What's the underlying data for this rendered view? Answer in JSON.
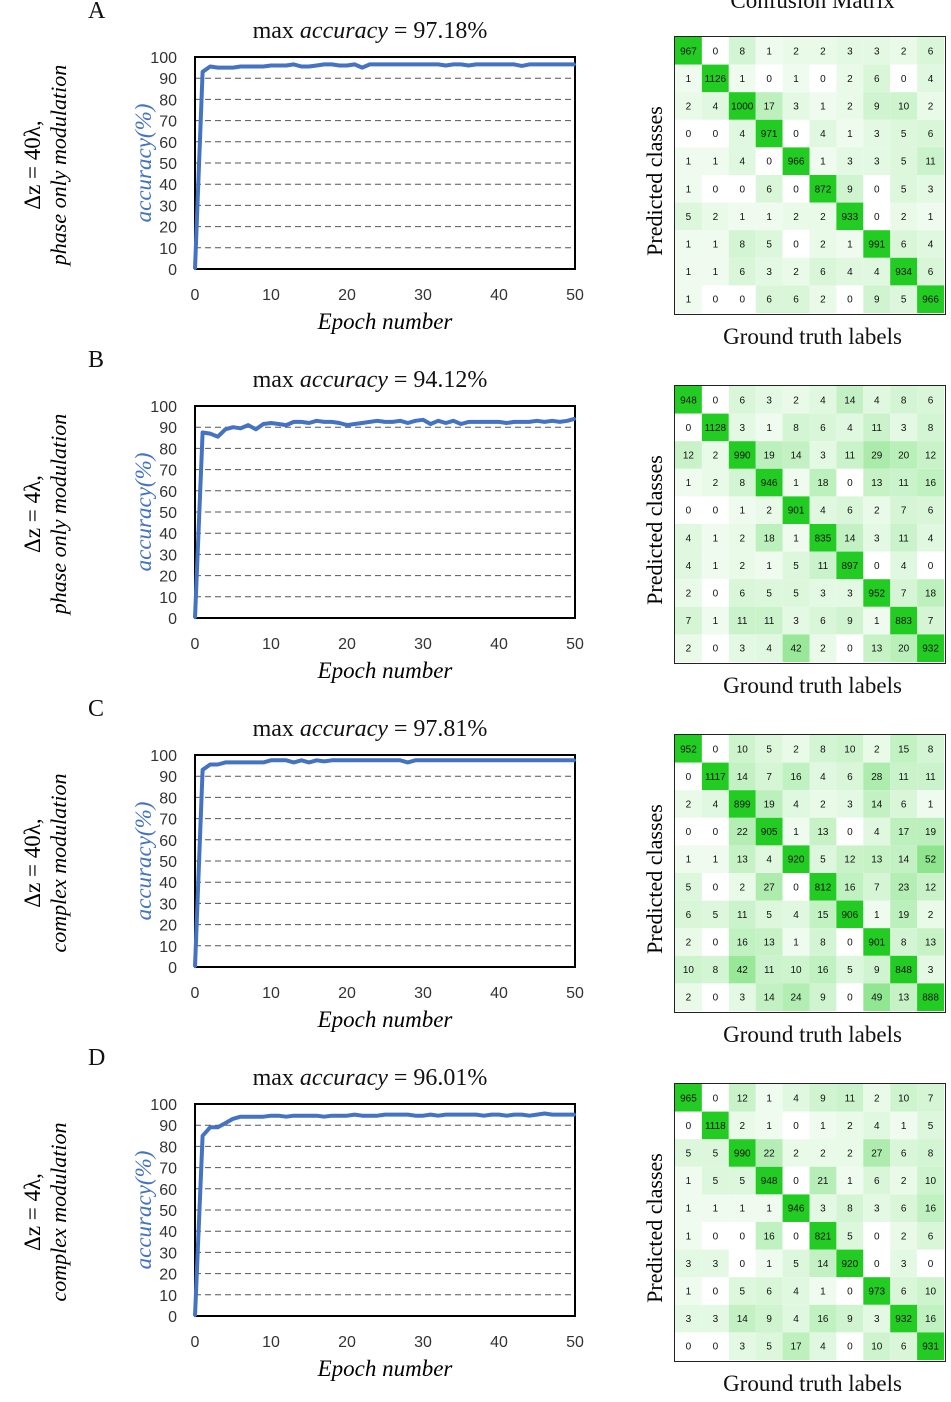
{
  "matrix_title": "Confusion Matrix",
  "matrix_xlabel": "Ground truth labels",
  "matrix_ylabel": "Predicted classes",
  "max_label": "max",
  "accuracy_word": "accuracy",
  "line_xlabel": "Epoch number",
  "line_ylabel": "accuracy(%)",
  "colors": {
    "line": "#4472C4",
    "ylabel": "#4472C4",
    "cell_max": "#22CC22",
    "cell_base": "#FFFFFF",
    "grid": "#555555"
  },
  "panels": [
    {
      "letter": "A",
      "side_line1": "Δz = 40λ,",
      "side_line2": "phase only modulation",
      "title_value": "= 97.18%"
    },
    {
      "letter": "B",
      "side_line1": "Δz = 4λ,",
      "side_line2": "phase only modulation",
      "title_value": "= 94.12%"
    },
    {
      "letter": "C",
      "side_line1": "Δz = 40λ,",
      "side_line2": "complex modulation",
      "title_value": "= 97.81%"
    },
    {
      "letter": "D",
      "side_line1": "Δz = 4λ,",
      "side_line2": "complex modulation",
      "title_value": "= 96.01%"
    }
  ],
  "chart_data": [
    {
      "type": "line",
      "title": "max accuracy = 97.18%",
      "xlabel": "Epoch number",
      "ylabel": "accuracy(%)",
      "xlim": [
        0,
        50
      ],
      "ylim": [
        0,
        100
      ],
      "xticks": [
        0,
        10,
        20,
        30,
        40,
        50
      ],
      "yticks": [
        0,
        10,
        20,
        30,
        40,
        50,
        60,
        70,
        80,
        90,
        100
      ],
      "grid": "horizontal dashed",
      "x": [
        0,
        1,
        2,
        3,
        4,
        5,
        6,
        7,
        8,
        9,
        10,
        11,
        12,
        13,
        14,
        15,
        16,
        17,
        18,
        19,
        20,
        21,
        22,
        23,
        24,
        25,
        26,
        27,
        28,
        29,
        30,
        31,
        32,
        33,
        34,
        35,
        36,
        37,
        38,
        39,
        40,
        41,
        42,
        43,
        44,
        45,
        46,
        47,
        48,
        49,
        50
      ],
      "series": [
        {
          "values": [
            0,
            93,
            95.5,
            95,
            95,
            95,
            95.5,
            95.5,
            95.5,
            95.5,
            96,
            96,
            96,
            96.5,
            95.5,
            95.5,
            96,
            96.5,
            96.5,
            96,
            96,
            96.5,
            95,
            96.5,
            96.5,
            96.5,
            96.5,
            96.5,
            96.5,
            96.5,
            96.5,
            96.5,
            96.5,
            96,
            96.5,
            96.5,
            96,
            96.5,
            96.5,
            96.5,
            96.5,
            96.5,
            96.5,
            95.8,
            96.5,
            96.5,
            96.5,
            96.5,
            96.5,
            96.5,
            96.5
          ]
        }
      ]
    },
    {
      "type": "line",
      "title": "max accuracy = 94.12%",
      "xlabel": "Epoch number",
      "ylabel": "accuracy(%)",
      "xlim": [
        0,
        50
      ],
      "ylim": [
        0,
        100
      ],
      "xticks": [
        0,
        10,
        20,
        30,
        40,
        50
      ],
      "yticks": [
        0,
        10,
        20,
        30,
        40,
        50,
        60,
        70,
        80,
        90,
        100
      ],
      "grid": "horizontal dashed",
      "x": [
        0,
        1,
        2,
        3,
        4,
        5,
        6,
        7,
        8,
        9,
        10,
        11,
        12,
        13,
        14,
        15,
        16,
        17,
        18,
        19,
        20,
        21,
        22,
        23,
        24,
        25,
        26,
        27,
        28,
        29,
        30,
        31,
        32,
        33,
        34,
        35,
        36,
        37,
        38,
        39,
        40,
        41,
        42,
        43,
        44,
        45,
        46,
        47,
        48,
        49,
        50
      ],
      "series": [
        {
          "values": [
            0,
            87.5,
            87,
            85.5,
            89,
            90,
            89.5,
            91,
            89,
            91.5,
            92,
            91.5,
            91,
            92.5,
            92.5,
            92,
            93,
            92.5,
            92.5,
            92,
            91,
            91.5,
            92,
            92.5,
            93,
            92.5,
            92.5,
            93,
            92,
            93,
            93.5,
            91.5,
            93,
            92,
            93,
            91.5,
            92.5,
            92.5,
            92.5,
            92.5,
            92.5,
            92,
            92.5,
            92.5,
            92.5,
            93,
            92.5,
            93,
            92.5,
            93,
            94
          ]
        }
      ]
    },
    {
      "type": "line",
      "title": "max accuracy = 97.81%",
      "xlabel": "Epoch number",
      "ylabel": "accuracy(%)",
      "xlim": [
        0,
        50
      ],
      "ylim": [
        0,
        100
      ],
      "xticks": [
        0,
        10,
        20,
        30,
        40,
        50
      ],
      "yticks": [
        0,
        10,
        20,
        30,
        40,
        50,
        60,
        70,
        80,
        90,
        100
      ],
      "grid": "horizontal dashed",
      "x": [
        0,
        1,
        2,
        3,
        4,
        5,
        6,
        7,
        8,
        9,
        10,
        11,
        12,
        13,
        14,
        15,
        16,
        17,
        18,
        19,
        20,
        21,
        22,
        23,
        24,
        25,
        26,
        27,
        28,
        29,
        30,
        31,
        32,
        33,
        34,
        35,
        36,
        37,
        38,
        39,
        40,
        41,
        42,
        43,
        44,
        45,
        46,
        47,
        48,
        49,
        50
      ],
      "series": [
        {
          "values": [
            0,
            93,
            95.5,
            95.5,
            96.5,
            96.5,
            96.5,
            96.5,
            96.5,
            96.5,
            97.5,
            97.5,
            97.5,
            96.5,
            97.5,
            96.5,
            97.5,
            97,
            97.5,
            97.5,
            97.5,
            97.5,
            97.5,
            97.5,
            97.5,
            97.5,
            97.5,
            97.5,
            96.5,
            97.5,
            97.5,
            97.5,
            97.5,
            97.5,
            97.5,
            97.5,
            97.5,
            97.5,
            97.5,
            97.5,
            97.5,
            97.5,
            97.5,
            97.5,
            97.5,
            97.5,
            97.5,
            97.5,
            97.5,
            97.5,
            97.5
          ]
        }
      ]
    },
    {
      "type": "line",
      "title": "max accuracy = 96.01%",
      "xlabel": "Epoch number",
      "ylabel": "accuracy(%)",
      "xlim": [
        0,
        50
      ],
      "ylim": [
        0,
        100
      ],
      "xticks": [
        0,
        10,
        20,
        30,
        40,
        50
      ],
      "yticks": [
        0,
        10,
        20,
        30,
        40,
        50,
        60,
        70,
        80,
        90,
        100
      ],
      "grid": "horizontal dashed",
      "x": [
        0,
        1,
        2,
        3,
        4,
        5,
        6,
        7,
        8,
        9,
        10,
        11,
        12,
        13,
        14,
        15,
        16,
        17,
        18,
        19,
        20,
        21,
        22,
        23,
        24,
        25,
        26,
        27,
        28,
        29,
        30,
        31,
        32,
        33,
        34,
        35,
        36,
        37,
        38,
        39,
        40,
        41,
        42,
        43,
        44,
        45,
        46,
        47,
        48,
        49,
        50
      ],
      "series": [
        {
          "values": [
            0,
            85,
            89,
            89,
            91,
            93,
            94,
            94,
            94,
            94,
            94.5,
            94.5,
            94,
            94.5,
            94.5,
            94.5,
            94.5,
            94,
            94.5,
            94.5,
            94.5,
            95,
            94.5,
            94.5,
            94.5,
            95,
            95,
            95,
            95,
            94.5,
            94.5,
            95,
            94.5,
            95,
            95,
            95,
            95,
            95,
            94.5,
            95,
            95,
            94.5,
            95,
            95,
            94.5,
            95,
            95.5,
            95,
            95,
            95,
            95
          ]
        }
      ]
    },
    {
      "type": "heatmap",
      "title": "Confusion Matrix",
      "xlabel": "Ground truth labels",
      "ylabel": "Predicted classes",
      "values": [
        [
          967,
          0,
          8,
          1,
          2,
          2,
          3,
          3,
          2,
          6
        ],
        [
          1,
          1126,
          1,
          0,
          1,
          0,
          2,
          6,
          0,
          4
        ],
        [
          2,
          4,
          1000,
          17,
          3,
          1,
          2,
          9,
          10,
          2
        ],
        [
          0,
          0,
          4,
          971,
          0,
          4,
          1,
          3,
          5,
          6
        ],
        [
          1,
          1,
          4,
          0,
          966,
          1,
          3,
          3,
          5,
          11
        ],
        [
          1,
          0,
          0,
          6,
          0,
          872,
          9,
          0,
          5,
          3
        ],
        [
          5,
          2,
          1,
          1,
          2,
          2,
          933,
          0,
          2,
          1
        ],
        [
          1,
          1,
          8,
          5,
          0,
          2,
          1,
          991,
          6,
          4
        ],
        [
          1,
          1,
          6,
          3,
          2,
          6,
          4,
          4,
          934,
          6
        ],
        [
          1,
          0,
          0,
          6,
          6,
          2,
          0,
          9,
          5,
          966
        ]
      ]
    },
    {
      "type": "heatmap",
      "title": "",
      "xlabel": "Ground truth labels",
      "ylabel": "Predicted classes",
      "values": [
        [
          948,
          0,
          6,
          3,
          2,
          4,
          14,
          4,
          8,
          6
        ],
        [
          0,
          1128,
          3,
          1,
          8,
          6,
          4,
          11,
          3,
          8
        ],
        [
          12,
          2,
          990,
          19,
          14,
          3,
          11,
          29,
          20,
          12
        ],
        [
          1,
          2,
          8,
          946,
          1,
          18,
          0,
          13,
          11,
          16
        ],
        [
          0,
          0,
          1,
          2,
          901,
          4,
          6,
          2,
          7,
          6
        ],
        [
          4,
          1,
          2,
          18,
          1,
          835,
          14,
          3,
          11,
          4
        ],
        [
          4,
          1,
          2,
          1,
          5,
          11,
          897,
          0,
          4,
          0
        ],
        [
          2,
          0,
          6,
          5,
          5,
          3,
          3,
          952,
          7,
          18
        ],
        [
          7,
          1,
          11,
          11,
          3,
          6,
          9,
          1,
          883,
          7
        ],
        [
          2,
          0,
          3,
          4,
          42,
          2,
          0,
          13,
          20,
          932
        ]
      ]
    },
    {
      "type": "heatmap",
      "title": "",
      "xlabel": "Ground truth labels",
      "ylabel": "Predicted classes",
      "values": [
        [
          952,
          0,
          10,
          5,
          2,
          8,
          10,
          2,
          15,
          8
        ],
        [
          0,
          1117,
          14,
          7,
          16,
          4,
          6,
          28,
          11,
          11
        ],
        [
          2,
          4,
          899,
          19,
          4,
          2,
          3,
          14,
          6,
          1
        ],
        [
          0,
          0,
          22,
          905,
          1,
          13,
          0,
          4,
          17,
          19
        ],
        [
          1,
          1,
          13,
          4,
          920,
          5,
          12,
          13,
          14,
          52
        ],
        [
          5,
          0,
          2,
          27,
          0,
          812,
          16,
          7,
          23,
          12
        ],
        [
          6,
          5,
          11,
          5,
          4,
          15,
          906,
          1,
          19,
          2
        ],
        [
          2,
          0,
          16,
          13,
          1,
          8,
          0,
          901,
          8,
          13
        ],
        [
          10,
          8,
          42,
          11,
          10,
          16,
          5,
          9,
          848,
          3
        ],
        [
          2,
          0,
          3,
          14,
          24,
          9,
          0,
          49,
          13,
          888
        ]
      ]
    },
    {
      "type": "heatmap",
      "title": "",
      "xlabel": "Ground truth labels",
      "ylabel": "Predicted classes",
      "values": [
        [
          965,
          0,
          12,
          1,
          4,
          9,
          11,
          2,
          10,
          7
        ],
        [
          0,
          1118,
          2,
          1,
          0,
          1,
          2,
          4,
          1,
          5
        ],
        [
          5,
          5,
          990,
          22,
          2,
          2,
          2,
          27,
          6,
          8
        ],
        [
          1,
          5,
          5,
          948,
          0,
          21,
          1,
          6,
          2,
          10
        ],
        [
          1,
          1,
          1,
          1,
          946,
          3,
          8,
          3,
          6,
          16
        ],
        [
          1,
          0,
          0,
          16,
          0,
          821,
          5,
          0,
          2,
          6
        ],
        [
          3,
          3,
          0,
          1,
          5,
          14,
          920,
          0,
          3,
          0
        ],
        [
          1,
          0,
          5,
          6,
          4,
          1,
          0,
          973,
          6,
          10
        ],
        [
          3,
          3,
          14,
          9,
          4,
          16,
          9,
          3,
          932,
          16
        ],
        [
          0,
          0,
          3,
          5,
          17,
          4,
          0,
          10,
          6,
          931
        ]
      ]
    }
  ]
}
